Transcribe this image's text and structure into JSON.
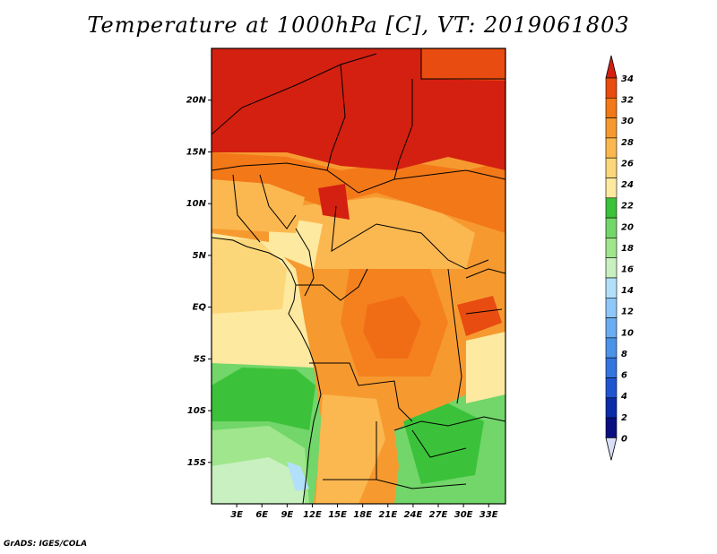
{
  "title": "Temperature at 1000hPa [C], VT: 2019061803",
  "credit": "GrADS: IGES/COLA",
  "map": {
    "lat_labels": [
      "20N",
      "15N",
      "10N",
      "5N",
      "EQ",
      "5S",
      "10S",
      "15S"
    ],
    "lat_values": [
      20,
      15,
      10,
      5,
      0,
      -5,
      -10,
      -15
    ],
    "lon_labels": [
      "3E",
      "6E",
      "9E",
      "12E",
      "15E",
      "18E",
      "21E",
      "24E",
      "27E",
      "30E",
      "33E"
    ],
    "lon_values": [
      3,
      6,
      9,
      12,
      15,
      18,
      21,
      24,
      27,
      30,
      33
    ],
    "lon_range": [
      0,
      35
    ],
    "lat_range": [
      -19,
      25
    ]
  },
  "colorbar": {
    "labels": [
      "34",
      "32",
      "30",
      "28",
      "26",
      "24",
      "22",
      "20",
      "18",
      "16",
      "14",
      "12",
      "10",
      "8",
      "6",
      "4",
      "2",
      "0"
    ],
    "colors": [
      "#d8e0f8",
      "#0a0f80",
      "#0a2ca8",
      "#1f55d0",
      "#3275e0",
      "#4a93e8",
      "#6aadf0",
      "#8ec8f8",
      "#b2e0fb",
      "#c8f0c0",
      "#a0e68c",
      "#72d66a",
      "#3cc23a",
      "#fde9a0",
      "#fcd77a",
      "#fbb850",
      "#f69a30",
      "#f37818",
      "#e84c10",
      "#d42010"
    ]
  }
}
